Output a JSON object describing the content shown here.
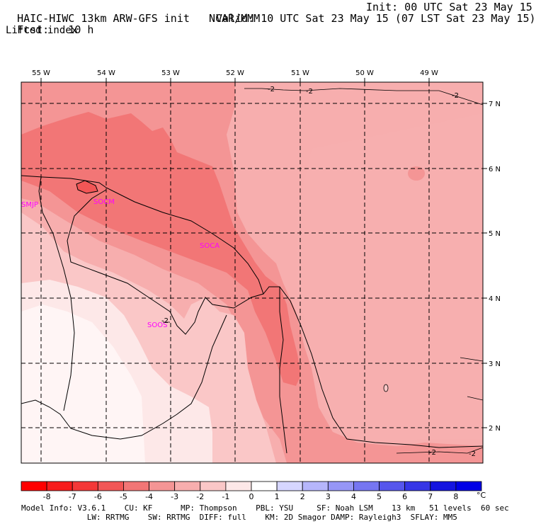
{
  "header": {
    "model_title": "HAIC-HIWC 13km ARW-GFS init",
    "org": "NCAR/MMM",
    "init": "Init: 00 UTC Sat 23 May 15",
    "fcst_label": "Fcst:",
    "fcst_value": "10 h",
    "valid": "Valid: 10 UTC Sat 23 May 15 (07 LST Sat 23 May 15)",
    "field": "Lifted index"
  },
  "map": {
    "lon_labels": [
      "55 W",
      "54 W",
      "53 W",
      "52 W",
      "51 W",
      "50 W",
      "49 W"
    ],
    "lat_labels": [
      "7 N",
      "6 N",
      "5 N",
      "4 N",
      "3 N",
      "2 N"
    ],
    "stations": [
      "SMJP",
      "SOCM",
      "SOCA",
      "SOOS"
    ],
    "contour_labels": [
      "-2",
      "-2",
      "-2",
      "-2",
      "-2",
      "-2",
      "-2"
    ],
    "colors": {
      "minus5": "#f27676",
      "minus4": "#f49595",
      "minus3": "#f7aeae",
      "minus2": "#fac7c7",
      "minus1": "#fde8e8",
      "zero": "#fff5f5"
    }
  },
  "colorbar": {
    "labels": [
      "-8",
      "-7",
      "-6",
      "-5",
      "-4",
      "-3",
      "-2",
      "-1",
      "0",
      "1",
      "2",
      "3",
      "4",
      "5",
      "6",
      "7",
      "8"
    ],
    "unit": "°C",
    "colors": [
      "#ff0000",
      "#f71c1c",
      "#f43838",
      "#f25656",
      "#f27676",
      "#f49595",
      "#f7aeae",
      "#fac7c7",
      "#fde8e8",
      "#ffffff",
      "#d6d6ff",
      "#b6b6fb",
      "#9696f6",
      "#7676f1",
      "#5656ec",
      "#3636e6",
      "#1414e0",
      "#0000e6"
    ]
  },
  "footer": {
    "line1": "Model Info: V3.6.1    CU: KF      MP: Thompson    PBL: YSU     SF: Noah LSM    13 km   51 levels  60 sec",
    "line2": "              LW: RRTMG    SW: RRTMG  DIFF: full    KM: 2D Smagor DAMP: Rayleigh3  SFLAY: MM5"
  }
}
